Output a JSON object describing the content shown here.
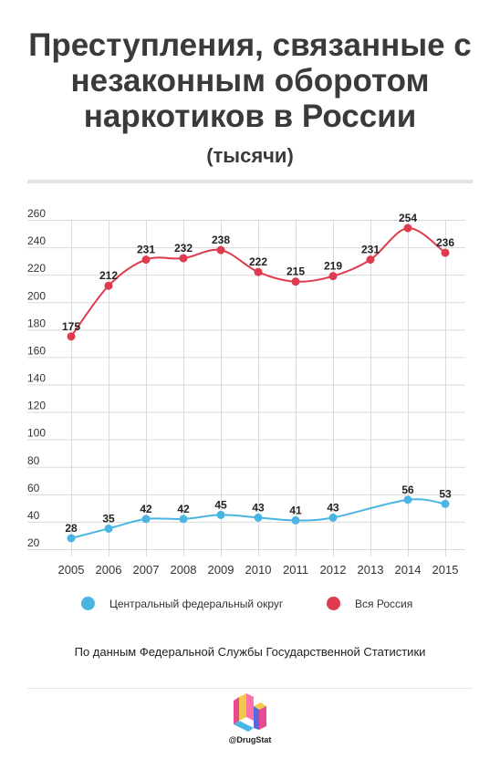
{
  "header": {
    "title_lines": [
      "Преступления, связанные с",
      "незаконным оборотом",
      "наркотиков в России"
    ],
    "subtitle": "(тысячи)"
  },
  "chart_data": {
    "type": "line",
    "title": "Преступления, связанные с незаконным оборотом наркотиков в России",
    "subtitle": "(тысячи)",
    "x": [
      2005,
      2006,
      2007,
      2008,
      2009,
      2010,
      2011,
      2012,
      2013,
      2014,
      2015
    ],
    "y_ticks": [
      20,
      40,
      60,
      80,
      100,
      120,
      140,
      160,
      180,
      200,
      220,
      240,
      260
    ],
    "ylim": [
      20,
      260
    ],
    "grid": true,
    "legend_position": "bottom",
    "series": [
      {
        "name": "Центральный федеральный округ",
        "color": "#4ab5e3",
        "values": [
          28,
          35,
          42,
          42,
          45,
          43,
          41,
          43,
          56,
          53
        ],
        "x": [
          2005,
          2006,
          2007,
          2008,
          2009,
          2010,
          2011,
          2012,
          2014,
          2015
        ],
        "labels": [
          "28",
          "35",
          "42",
          "42",
          "45",
          "43",
          "41",
          "43",
          "56",
          "53"
        ]
      },
      {
        "name": "Вся Россия",
        "color": "#df3b4e",
        "values": [
          175,
          212,
          231,
          232,
          238,
          222,
          215,
          219,
          231,
          254,
          236
        ],
        "x": [
          2005,
          2006,
          2007,
          2008,
          2009,
          2010,
          2011,
          2012,
          2013,
          2014,
          2015
        ],
        "labels": [
          "175",
          "212",
          "231",
          "232",
          "238",
          "222",
          "215",
          "219",
          "231",
          "254",
          "236"
        ]
      }
    ]
  },
  "legend": {
    "items": [
      {
        "label": "Центральный федеральный округ",
        "color": "#4ab5e3"
      },
      {
        "label": "Вся Россия",
        "color": "#df3b4e"
      }
    ]
  },
  "footer": {
    "source": "По данным Федеральной Службы Государственной Статистики",
    "logo_text": "@DrugStat"
  }
}
